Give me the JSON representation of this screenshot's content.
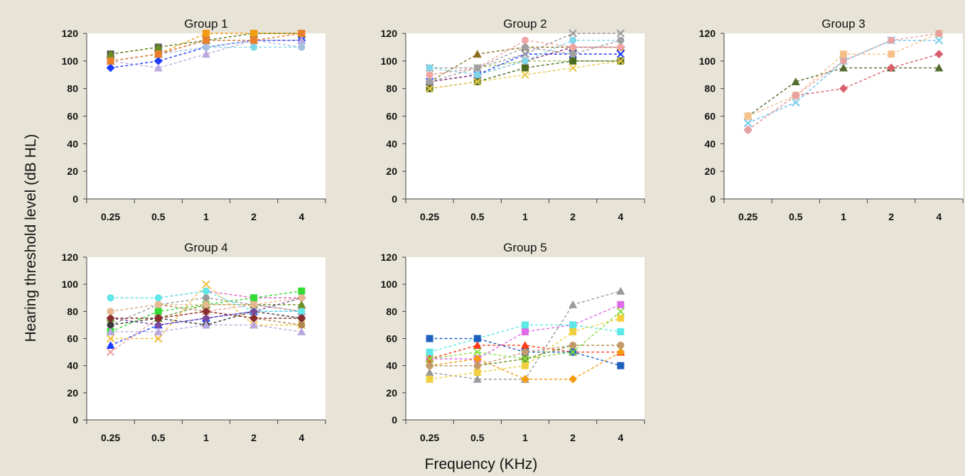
{
  "figure": {
    "ylabel": "Hearing threshold level (dB HL)",
    "xlabel": "Frequency (KHz)"
  },
  "chart_data": [
    {
      "type": "line",
      "title": "Group 1",
      "categories": [
        "0.25",
        "0.5",
        "1",
        "2",
        "4"
      ],
      "ylim": [
        0,
        120
      ],
      "yticks": [
        0,
        20,
        40,
        60,
        80,
        100,
        120
      ],
      "series": [
        {
          "color": "#555555",
          "marker": "square",
          "values": [
            105,
            110,
            115,
            120,
            120
          ]
        },
        {
          "color": "#6b8e23",
          "marker": "triangle",
          "values": [
            105,
            110,
            115,
            120,
            120
          ]
        },
        {
          "color": "#f39c12",
          "marker": "square",
          "values": [
            100,
            105,
            120,
            120,
            120
          ]
        },
        {
          "color": "#1f3f9a",
          "marker": "x",
          "values": [
            100,
            105,
            115,
            115,
            115
          ]
        },
        {
          "color": "#1a3cff",
          "marker": "diamond",
          "values": [
            95,
            100,
            110,
            115,
            115
          ]
        },
        {
          "color": "#b9a9e0",
          "marker": "triangle",
          "values": [
            100,
            95,
            105,
            115,
            115
          ]
        },
        {
          "color": "#7fd6e8",
          "marker": "circle",
          "values": [
            100,
            105,
            110,
            110,
            110
          ]
        },
        {
          "color": "#a8bfe0",
          "marker": "circle",
          "values": [
            100,
            105,
            110,
            115,
            110
          ]
        },
        {
          "color": "#e87f2a",
          "marker": "square",
          "values": [
            100,
            105,
            115,
            115,
            120
          ]
        }
      ]
    },
    {
      "type": "line",
      "title": "Group 2",
      "categories": [
        "0.25",
        "0.5",
        "1",
        "2",
        "4"
      ],
      "ylim": [
        0,
        120
      ],
      "yticks": [
        0,
        20,
        40,
        60,
        80,
        100,
        120
      ],
      "series": [
        {
          "color": "#9bbb59",
          "marker": "circle",
          "values": [
            90,
            95,
            100,
            100,
            100
          ]
        },
        {
          "color": "#4b6b1f",
          "marker": "square",
          "values": [
            80,
            85,
            95,
            100,
            100
          ]
        },
        {
          "color": "#8c6d1f",
          "marker": "triangle",
          "values": [
            85,
            105,
            110,
            110,
            110
          ]
        },
        {
          "color": "#1a3cff",
          "marker": "x",
          "values": [
            85,
            90,
            105,
            105,
            105
          ]
        },
        {
          "color": "#8e2c6e",
          "marker": "diamond",
          "values": [
            85,
            90,
            100,
            110,
            110
          ]
        },
        {
          "color": "#9a9a9a",
          "marker": "x",
          "values": [
            95,
            95,
            105,
            120,
            120
          ]
        },
        {
          "color": "#f2a3a3",
          "marker": "circle",
          "values": [
            90,
            95,
            115,
            110,
            110
          ]
        },
        {
          "color": "#e8c84a",
          "marker": "x",
          "values": [
            80,
            85,
            90,
            95,
            100
          ]
        },
        {
          "color": "#7fd6e8",
          "marker": "circle",
          "values": [
            95,
            90,
            100,
            115,
            115
          ]
        },
        {
          "color": "#a0a0a0",
          "marker": "circle",
          "values": [
            85,
            95,
            110,
            105,
            115
          ]
        }
      ]
    },
    {
      "type": "line",
      "title": "Group 3",
      "categories": [
        "0.25",
        "0.5",
        "1",
        "2",
        "4"
      ],
      "ylim": [
        0,
        120
      ],
      "yticks": [
        0,
        20,
        40,
        60,
        80,
        100,
        120
      ],
      "series": [
        {
          "color": "#556b2f",
          "marker": "triangle",
          "values": [
            60,
            85,
            95,
            95,
            95
          ]
        },
        {
          "color": "#1a3cff",
          "marker": "x",
          "values": [
            55,
            70,
            100,
            115,
            115
          ]
        },
        {
          "color": "#7fd6e8",
          "marker": "x",
          "values": [
            55,
            70,
            100,
            115,
            115
          ]
        },
        {
          "color": "#f6c08a",
          "marker": "square",
          "values": [
            60,
            75,
            105,
            105,
            120
          ]
        },
        {
          "color": "#d9606c",
          "marker": "diamond",
          "values": [
            50,
            75,
            80,
            95,
            105
          ]
        },
        {
          "color": "#e8a0a0",
          "marker": "circle",
          "values": [
            50,
            75,
            100,
            115,
            120
          ]
        }
      ]
    },
    {
      "type": "line",
      "title": "Group 4",
      "categories": [
        "0.25",
        "0.5",
        "1",
        "2",
        "4"
      ],
      "ylim": [
        0,
        120
      ],
      "yticks": [
        0,
        20,
        40,
        60,
        80,
        100,
        120
      ],
      "series": [
        {
          "color": "#e25ec8",
          "marker": "circle",
          "values": [
            90,
            90,
            95,
            90,
            90
          ]
        },
        {
          "color": "#33dd33",
          "marker": "square",
          "values": [
            65,
            80,
            85,
            90,
            95
          ]
        },
        {
          "color": "#1a3cff",
          "marker": "triangle",
          "values": [
            55,
            70,
            75,
            80,
            80
          ]
        },
        {
          "color": "#e8a0a0",
          "marker": "x",
          "values": [
            50,
            75,
            80,
            85,
            80
          ]
        },
        {
          "color": "#9a9a9a",
          "marker": "circle",
          "values": [
            70,
            85,
            90,
            85,
            80
          ]
        },
        {
          "color": "#6b8e23",
          "marker": "triangle",
          "values": [
            75,
            75,
            85,
            85,
            85
          ]
        },
        {
          "color": "#3a3a3a",
          "marker": "circle",
          "values": [
            70,
            75,
            70,
            80,
            75
          ]
        },
        {
          "color": "#f0c040",
          "marker": "x",
          "values": [
            60,
            60,
            100,
            70,
            70
          ]
        },
        {
          "color": "#b08850",
          "marker": "circle",
          "values": [
            80,
            85,
            80,
            75,
            70
          ]
        },
        {
          "color": "#5ee8e8",
          "marker": "circle",
          "values": [
            90,
            90,
            95,
            80,
            80
          ]
        },
        {
          "color": "#7a4a9a",
          "marker": "diamond",
          "values": [
            75,
            70,
            75,
            80,
            90
          ]
        },
        {
          "color": "#b9a9e0",
          "marker": "triangle",
          "values": [
            65,
            65,
            70,
            70,
            65
          ]
        },
        {
          "color": "#8b2c2c",
          "marker": "diamond",
          "values": [
            75,
            75,
            80,
            75,
            75
          ]
        },
        {
          "color": "#e8b890",
          "marker": "circle",
          "values": [
            80,
            85,
            85,
            85,
            90
          ]
        }
      ]
    },
    {
      "type": "line",
      "title": "Group 5",
      "categories": [
        "0.25",
        "0.5",
        "1",
        "2",
        "4"
      ],
      "ylim": [
        0,
        120
      ],
      "yticks": [
        0,
        20,
        40,
        60,
        80,
        100,
        120
      ],
      "series": [
        {
          "color": "#9a9a9a",
          "marker": "triangle",
          "values": [
            35,
            30,
            30,
            85,
            95
          ]
        },
        {
          "color": "#e06ae8",
          "marker": "square",
          "values": [
            45,
            45,
            65,
            70,
            85
          ]
        },
        {
          "color": "#5ee8e8",
          "marker": "square",
          "values": [
            50,
            60,
            70,
            70,
            65
          ]
        },
        {
          "color": "#f0d040",
          "marker": "square",
          "values": [
            30,
            35,
            40,
            65,
            75
          ]
        },
        {
          "color": "#ff3a1a",
          "marker": "triangle",
          "values": [
            45,
            55,
            55,
            50,
            50
          ]
        },
        {
          "color": "#1f5fbf",
          "marker": "square",
          "values": [
            60,
            60,
            50,
            50,
            40
          ]
        },
        {
          "color": "#f39c12",
          "marker": "diamond",
          "values": [
            40,
            45,
            30,
            30,
            50
          ]
        },
        {
          "color": "#6b8e23",
          "marker": "circle",
          "values": [
            40,
            40,
            45,
            55,
            55
          ]
        },
        {
          "color": "#c49a6c",
          "marker": "circle",
          "values": [
            40,
            40,
            50,
            55,
            55
          ]
        },
        {
          "color": "#88dd44",
          "marker": "x",
          "values": [
            45,
            50,
            45,
            50,
            80
          ]
        }
      ]
    }
  ]
}
